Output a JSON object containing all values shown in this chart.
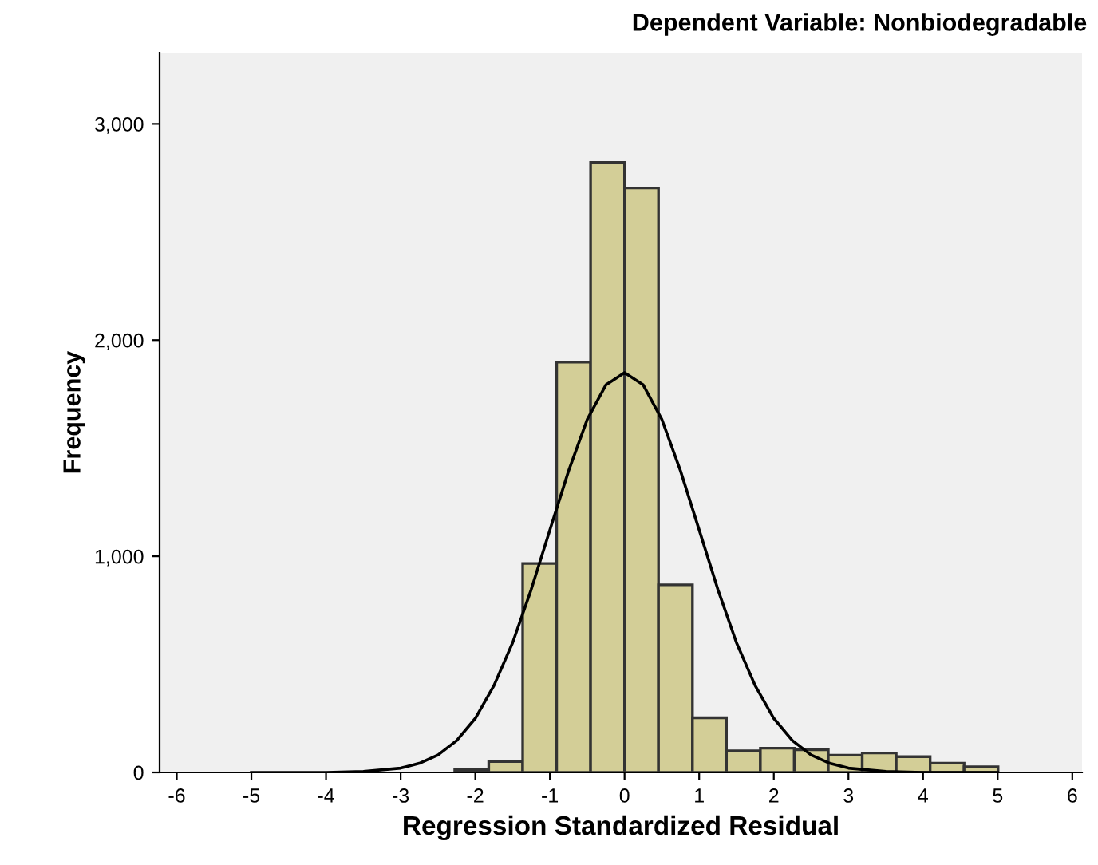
{
  "chart_data": {
    "type": "histogram",
    "title": "Dependent Variable: Nonbiodegradable",
    "xlabel": "Regression Standardized Residual",
    "ylabel": "Frequency",
    "bins": [
      -2.275,
      -1.82,
      -1.365,
      -0.91,
      -0.455,
      0,
      0.455,
      0.91,
      1.365,
      1.82,
      2.275,
      2.73,
      3.185,
      3.64,
      4.095,
      4.55,
      5.005
    ],
    "values": [
      13,
      50,
      967,
      1898,
      2822,
      2704,
      868,
      253,
      100,
      112,
      105,
      80,
      90,
      73,
      43,
      26
    ],
    "color": "#d3ce97",
    "series": [
      {
        "type": "line",
        "color": "#000000",
        "x": [
          -5,
          -4,
          -3.5,
          -3,
          -2.75,
          -2.5,
          -2.25,
          -2,
          -1.75,
          -1.5,
          -1.25,
          -1,
          -0.75,
          -0.5,
          -0.25,
          0,
          0.25,
          0.5,
          0.75,
          1,
          1.25,
          1.5,
          1.75,
          2,
          2.25,
          2.5,
          2.75,
          3,
          3.5,
          4,
          5
        ],
        "values": [
          0,
          0,
          4,
          20,
          42,
          81,
          147,
          250,
          402,
          600,
          847,
          1122,
          1395,
          1633,
          1793,
          1850,
          1793,
          1633,
          1395,
          1122,
          847,
          600,
          402,
          250,
          147,
          81,
          42,
          20,
          4,
          0,
          0
        ]
      }
    ],
    "xlim": [
      -6.23,
      6.13
    ],
    "ylim": [
      0,
      3330
    ],
    "xticks": [
      -6,
      -5,
      -4,
      -3,
      -2,
      -1,
      0,
      1,
      2,
      3,
      4,
      5,
      6
    ],
    "yticks": [
      0,
      {
        "value": 1000,
        "label": "1,000"
      },
      {
        "value": 2000,
        "label": "2,000"
      },
      {
        "value": 3000,
        "label": "3,000"
      }
    ],
    "grid": false
  }
}
